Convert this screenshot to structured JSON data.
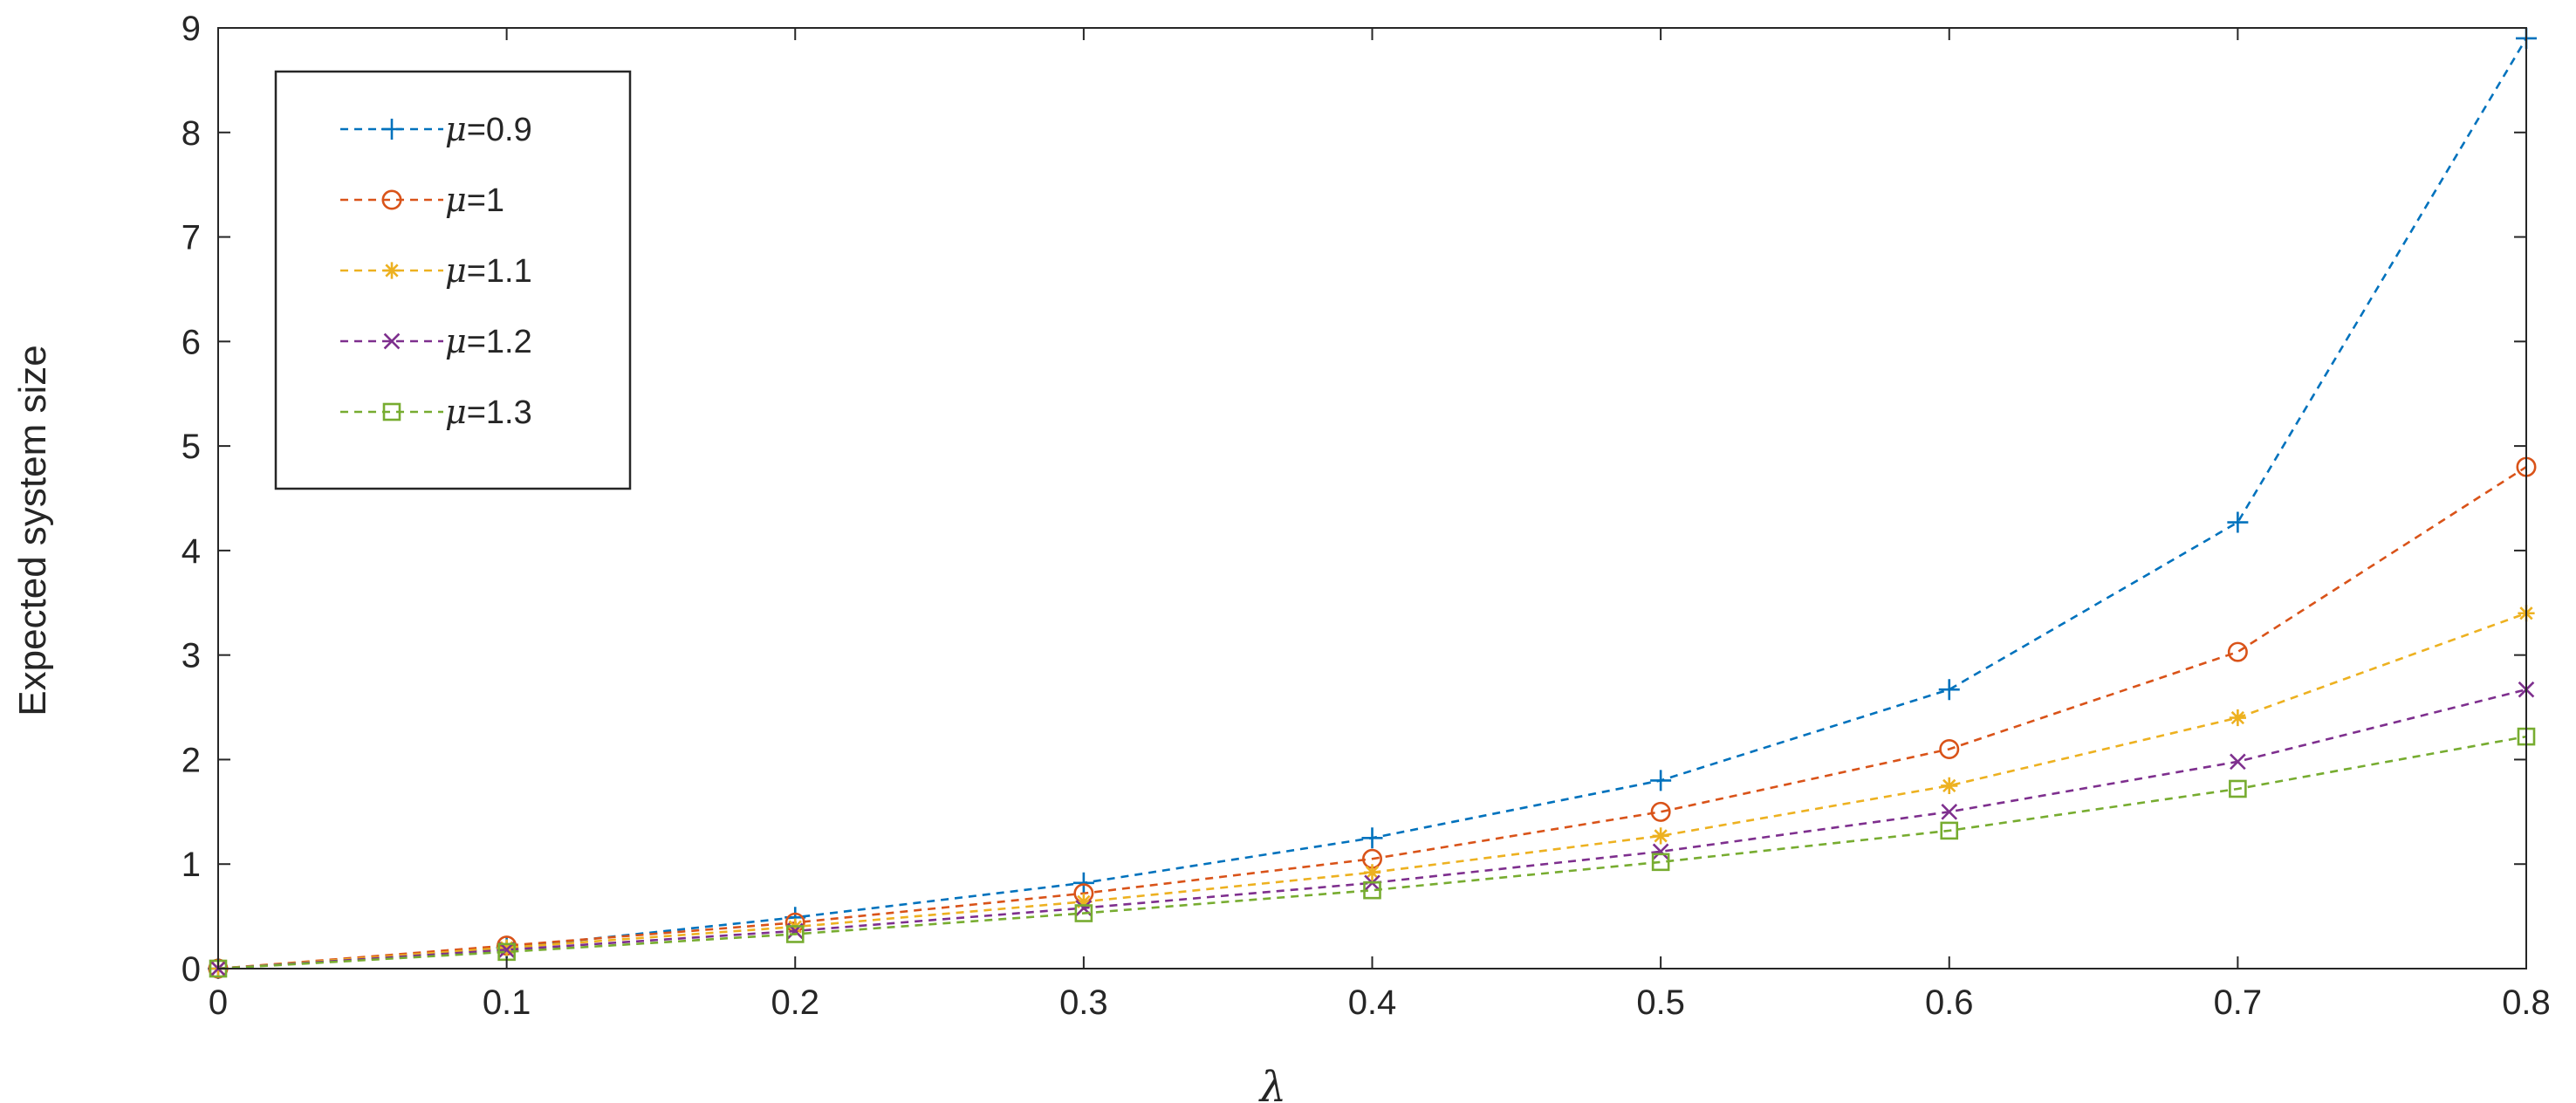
{
  "chart_data": {
    "type": "line",
    "xlabel": "λ",
    "ylabel": "Expected system size",
    "xlim": [
      0,
      0.8
    ],
    "ylim": [
      0,
      9
    ],
    "x_ticks": [
      "0",
      "0.1",
      "0.2",
      "0.3",
      "0.4",
      "0.5",
      "0.6",
      "0.7",
      "0.8"
    ],
    "y_ticks": [
      "0",
      "1",
      "2",
      "3",
      "4",
      "5",
      "6",
      "7",
      "8",
      "9"
    ],
    "grid": false,
    "legend_position": "top-left",
    "x": [
      0,
      0.1,
      0.2,
      0.3,
      0.4,
      0.5,
      0.6,
      0.7,
      0.8
    ],
    "series": [
      {
        "name": "μ=0.9",
        "mu_symbol": "μ",
        "mu_value": "=0.9",
        "color": "#0072BD",
        "marker": "plus",
        "values": [
          0,
          0.2,
          0.49,
          0.82,
          1.25,
          1.8,
          2.67,
          4.27,
          8.9
        ]
      },
      {
        "name": "μ=1",
        "mu_symbol": "μ",
        "mu_value": "=1",
        "color": "#D95319",
        "marker": "circle",
        "values": [
          0,
          0.22,
          0.44,
          0.72,
          1.05,
          1.5,
          2.1,
          3.03,
          4.8
        ]
      },
      {
        "name": "μ=1.1",
        "mu_symbol": "μ",
        "mu_value": "=1.1",
        "color": "#EDB120",
        "marker": "star",
        "values": [
          0,
          0.2,
          0.4,
          0.64,
          0.92,
          1.27,
          1.75,
          2.4,
          3.4
        ]
      },
      {
        "name": "μ=1.2",
        "mu_symbol": "μ",
        "mu_value": "=1.2",
        "color": "#7E2F8E",
        "marker": "x",
        "values": [
          0,
          0.18,
          0.36,
          0.58,
          0.82,
          1.12,
          1.5,
          1.98,
          2.67
        ]
      },
      {
        "name": "μ=1.3",
        "mu_symbol": "μ",
        "mu_value": "=1.3",
        "color": "#77AC30",
        "marker": "square",
        "values": [
          0,
          0.16,
          0.33,
          0.53,
          0.75,
          1.02,
          1.32,
          1.72,
          2.22
        ]
      }
    ]
  }
}
